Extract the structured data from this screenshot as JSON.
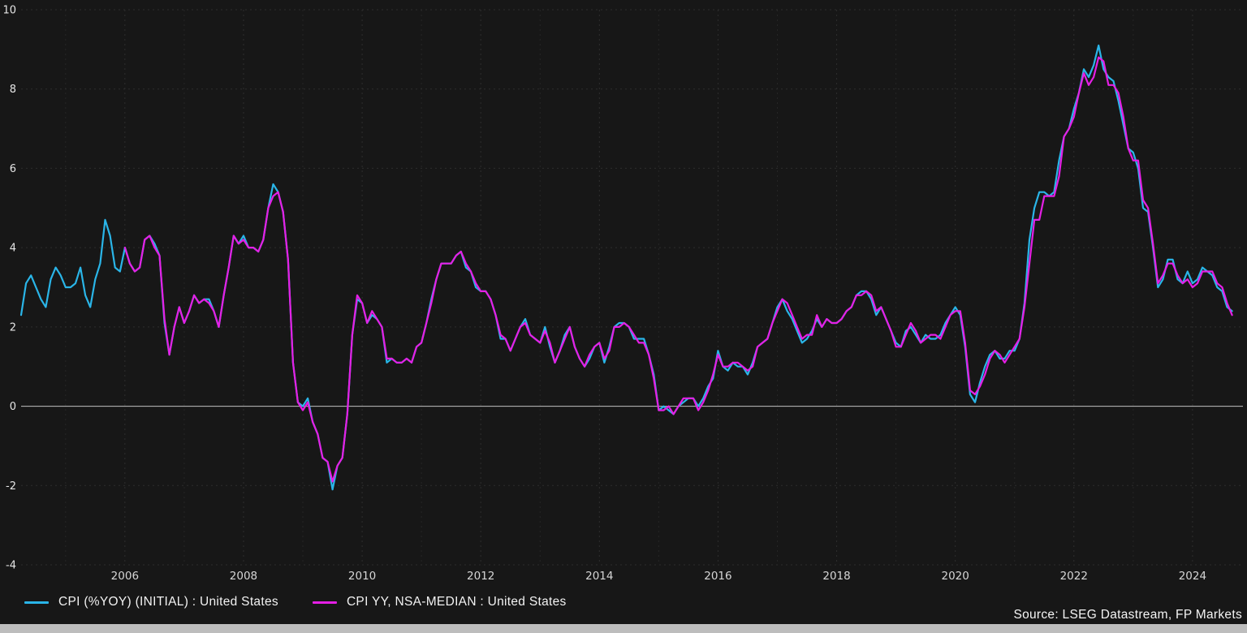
{
  "chart": {
    "source_text": "Source: LSEG Datastream, FP Markets",
    "colors": {
      "background": "#171717",
      "grid": "#2e2e2e",
      "grid_minor": "#262626",
      "zero_line": "#c2c2c2",
      "axis_text": "#e6e6e6",
      "x_axis_text": "#d6d6d6",
      "series1": "#2ab5e8",
      "series2": "#e51fe5",
      "footer_bar": "#bdbdbd"
    },
    "legend": [
      {
        "label": "CPI (%YOY) (INITIAL) : United States",
        "color": "#2ab5e8"
      },
      {
        "label": "CPI YY, NSA-MEDIAN : United States",
        "color": "#e51fe5"
      }
    ]
  },
  "chart_data": {
    "type": "line",
    "title": "",
    "xlabel": "",
    "ylabel": "",
    "grid": true,
    "legend_position": "bottom-left",
    "x_axis": {
      "min": 2004.25,
      "max": 2024.85,
      "tick_years": [
        2006,
        2008,
        2010,
        2012,
        2014,
        2016,
        2018,
        2020,
        2022,
        2024
      ]
    },
    "y_axis": {
      "min": -4,
      "max": 10,
      "ticks": [
        10,
        8,
        6,
        4,
        2,
        0,
        -2,
        -4
      ]
    },
    "frequency": "monthly",
    "series": [
      {
        "name": "CPI (%YOY) (INITIAL) : United States",
        "color": "#2ab5e8",
        "start_year": 2004,
        "start_month": 4,
        "values": [
          2.3,
          3.1,
          3.3,
          3.0,
          2.7,
          2.5,
          3.2,
          3.5,
          3.3,
          3.0,
          3.0,
          3.1,
          3.5,
          2.8,
          2.5,
          3.2,
          3.6,
          4.7,
          4.3,
          3.5,
          3.4,
          4.0,
          3.6,
          3.4,
          3.5,
          4.2,
          4.3,
          4.1,
          3.8,
          2.1,
          1.3,
          2.0,
          2.5,
          2.1,
          2.4,
          2.8,
          2.6,
          2.7,
          2.7,
          2.4,
          2.0,
          2.8,
          3.5,
          4.3,
          4.1,
          4.3,
          4.0,
          4.0,
          3.9,
          4.2,
          5.0,
          5.6,
          5.4,
          4.9,
          3.7,
          1.1,
          0.1,
          0.0,
          0.2,
          -0.4,
          -0.7,
          -1.3,
          -1.4,
          -2.1,
          -1.5,
          -1.3,
          -0.2,
          1.8,
          2.7,
          2.6,
          2.1,
          2.3,
          2.2,
          2.0,
          1.1,
          1.2,
          1.1,
          1.1,
          1.2,
          1.1,
          1.5,
          1.6,
          2.1,
          2.7,
          3.2,
          3.6,
          3.6,
          3.6,
          3.8,
          3.9,
          3.5,
          3.4,
          3.0,
          2.9,
          2.9,
          2.7,
          2.3,
          1.7,
          1.7,
          1.4,
          1.7,
          2.0,
          2.2,
          1.8,
          1.7,
          1.6,
          2.0,
          1.5,
          1.1,
          1.4,
          1.8,
          2.0,
          1.5,
          1.2,
          1.0,
          1.2,
          1.5,
          1.6,
          1.1,
          1.5,
          2.0,
          2.1,
          2.1,
          2.0,
          1.7,
          1.7,
          1.7,
          1.3,
          0.8,
          -0.1,
          0.0,
          -0.1,
          -0.2,
          0.0,
          0.1,
          0.2,
          0.2,
          0.0,
          0.2,
          0.5,
          0.7,
          1.4,
          1.0,
          0.9,
          1.1,
          1.0,
          1.0,
          0.8,
          1.1,
          1.5,
          1.6,
          1.7,
          2.1,
          2.5,
          2.7,
          2.4,
          2.2,
          1.9,
          1.6,
          1.7,
          1.9,
          2.2,
          2.0,
          2.2,
          2.1,
          2.1,
          2.2,
          2.4,
          2.5,
          2.8,
          2.9,
          2.9,
          2.7,
          2.3,
          2.5,
          2.2,
          1.9,
          1.6,
          1.5,
          1.9,
          2.0,
          1.8,
          1.6,
          1.8,
          1.7,
          1.7,
          1.8,
          2.1,
          2.3,
          2.5,
          2.3,
          1.5,
          0.3,
          0.1,
          0.6,
          1.0,
          1.3,
          1.4,
          1.2,
          1.2,
          1.4,
          1.4,
          1.7,
          2.6,
          4.2,
          5.0,
          5.4,
          5.4,
          5.3,
          5.4,
          6.2,
          6.8,
          7.0,
          7.5,
          7.9,
          8.5,
          8.3,
          8.6,
          9.1,
          8.5,
          8.3,
          8.2,
          7.7,
          7.1,
          6.5,
          6.4,
          6.0,
          5.0,
          4.9,
          4.0,
          3.0,
          3.2,
          3.7,
          3.7,
          3.2,
          3.1,
          3.4,
          3.1,
          3.2,
          3.5,
          3.4,
          3.3,
          3.0,
          2.9,
          2.5,
          2.4
        ]
      },
      {
        "name": "CPI YY, NSA-MEDIAN : United States",
        "color": "#e51fe5",
        "start_year": 2006,
        "start_month": 1,
        "values": [
          4.0,
          3.6,
          3.4,
          3.5,
          4.2,
          4.3,
          4.0,
          3.8,
          2.2,
          1.3,
          2.0,
          2.5,
          2.1,
          2.4,
          2.8,
          2.6,
          2.7,
          2.6,
          2.4,
          2.0,
          2.8,
          3.5,
          4.3,
          4.1,
          4.2,
          4.0,
          4.0,
          3.9,
          4.2,
          5.0,
          5.3,
          5.4,
          4.9,
          3.7,
          1.1,
          0.1,
          -0.1,
          0.1,
          -0.4,
          -0.7,
          -1.3,
          -1.4,
          -1.9,
          -1.5,
          -1.3,
          -0.2,
          1.8,
          2.8,
          2.6,
          2.1,
          2.4,
          2.2,
          2.0,
          1.2,
          1.2,
          1.1,
          1.1,
          1.2,
          1.1,
          1.5,
          1.6,
          2.1,
          2.6,
          3.2,
          3.6,
          3.6,
          3.6,
          3.8,
          3.9,
          3.6,
          3.4,
          3.1,
          2.9,
          2.9,
          2.7,
          2.3,
          1.8,
          1.7,
          1.4,
          1.7,
          2.0,
          2.1,
          1.8,
          1.7,
          1.6,
          1.9,
          1.6,
          1.1,
          1.4,
          1.7,
          2.0,
          1.5,
          1.2,
          1.0,
          1.3,
          1.5,
          1.6,
          1.2,
          1.4,
          2.0,
          2.0,
          2.1,
          2.0,
          1.8,
          1.6,
          1.6,
          1.3,
          0.7,
          -0.1,
          -0.1,
          0.0,
          -0.2,
          0.0,
          0.2,
          0.2,
          0.2,
          -0.1,
          0.1,
          0.4,
          0.8,
          1.3,
          1.0,
          1.0,
          1.1,
          1.1,
          1.0,
          0.9,
          1.0,
          1.5,
          1.6,
          1.7,
          2.1,
          2.4,
          2.7,
          2.6,
          2.3,
          2.0,
          1.7,
          1.8,
          1.8,
          2.3,
          2.0,
          2.2,
          2.1,
          2.1,
          2.2,
          2.4,
          2.5,
          2.8,
          2.8,
          2.9,
          2.8,
          2.4,
          2.5,
          2.2,
          1.9,
          1.5,
          1.5,
          1.8,
          2.1,
          1.9,
          1.6,
          1.7,
          1.8,
          1.8,
          1.7,
          2.0,
          2.3,
          2.4,
          2.4,
          1.6,
          0.4,
          0.3,
          0.5,
          0.8,
          1.2,
          1.4,
          1.3,
          1.1,
          1.3,
          1.5,
          1.7,
          2.5,
          3.6,
          4.7,
          4.7,
          5.3,
          5.3,
          5.3,
          5.8,
          6.8,
          7.0,
          7.3,
          7.9,
          8.4,
          8.1,
          8.3,
          8.8,
          8.7,
          8.1,
          8.1,
          7.9,
          7.3,
          6.5,
          6.2,
          6.2,
          5.2,
          5.0,
          4.1,
          3.1,
          3.3,
          3.6,
          3.6,
          3.3,
          3.1,
          3.2,
          3.0,
          3.1,
          3.4,
          3.4,
          3.4,
          3.1,
          3.0,
          2.6,
          2.3
        ]
      }
    ]
  }
}
